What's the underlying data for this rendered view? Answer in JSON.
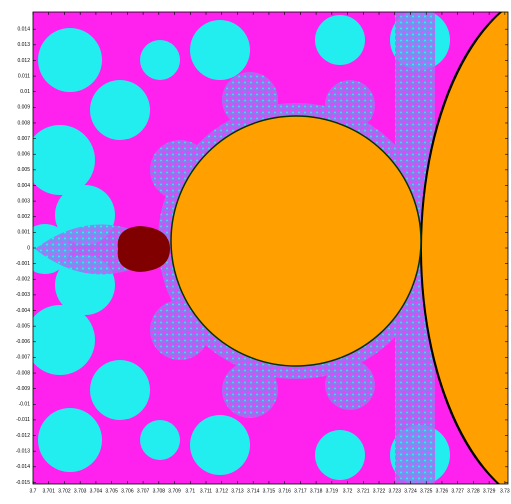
{
  "chart_data": {
    "type": "fractal",
    "xlim": [
      3.7,
      3.7302
    ],
    "ylim": [
      -0.0151,
      0.0151
    ],
    "xticks": [
      3.7,
      3.701,
      3.702,
      3.703,
      3.704,
      3.705,
      3.706,
      3.707,
      3.708,
      3.709,
      3.71,
      3.711,
      3.712,
      3.713,
      3.714,
      3.715,
      3.716,
      3.717,
      3.718,
      3.719,
      3.72,
      3.721,
      3.722,
      3.723,
      3.724,
      3.725,
      3.726,
      3.727,
      3.728,
      3.729,
      3.73
    ],
    "yticks": [
      -0.015,
      -0.014,
      -0.013,
      -0.012,
      -0.011,
      -0.01,
      -0.009,
      -0.008,
      -0.007,
      -0.006,
      -0.005,
      -0.004,
      -0.003,
      -0.002,
      -0.001,
      0,
      0.001,
      0.002,
      0.003,
      0.004,
      0.005,
      0.006,
      0.007,
      0.008,
      0.009,
      0.01,
      0.011,
      0.012,
      0.013,
      0.014
    ]
  }
}
